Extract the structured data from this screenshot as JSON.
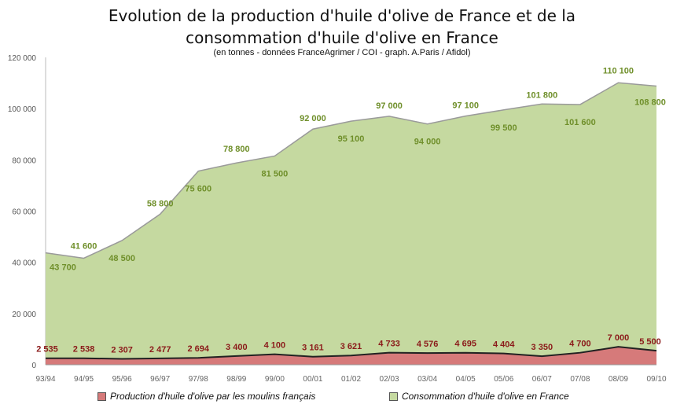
{
  "chart_data": {
    "type": "area",
    "title_line1": "Evolution de la production d'huile d'olive de France et de la",
    "title_line2": "consommation d'huile d'olive en France",
    "subtitle": "(en tonnes - données FranceAgrimer / COI - graph. A.Paris / Afidol)",
    "categories": [
      "93/94",
      "94/95",
      "95/96",
      "96/97",
      "97/98",
      "98/99",
      "99/00",
      "00/01",
      "01/02",
      "02/03",
      "03/04",
      "04/05",
      "05/06",
      "06/07",
      "07/08",
      "08/09",
      "09/10"
    ],
    "ylim": [
      0,
      120000
    ],
    "yticks": [
      0,
      20000,
      40000,
      60000,
      80000,
      100000,
      120000
    ],
    "ytick_labels": [
      "0",
      "20 000",
      "40 000",
      "60 000",
      "80 000",
      "100 000",
      "120 000"
    ],
    "series": [
      {
        "name": "Consommation d'huile d'olive en France",
        "color": "#c5d9a0",
        "line_color": "#9a9a9a",
        "label_color": "#6f8f2a",
        "values": [
          43700,
          41600,
          48500,
          58800,
          75600,
          78800,
          81500,
          92000,
          95100,
          97000,
          94000,
          97100,
          99500,
          101800,
          101600,
          110100,
          108800
        ],
        "labels": [
          "43 700",
          "41 600",
          "48 500",
          "58 800",
          "75 600",
          "78 800",
          "81 500",
          "92 000",
          "95 100",
          "97 000",
          "94 000",
          "97 100",
          "99 500",
          "101 800",
          "101 600",
          "110 100",
          "108 800"
        ]
      },
      {
        "name": "Production d'huile d'olive par les moulins français",
        "color": "#d67a7a",
        "line_color": "#222222",
        "label_color": "#8b1a1a",
        "values": [
          2535,
          2538,
          2307,
          2477,
          2694,
          3400,
          4100,
          3161,
          3621,
          4733,
          4576,
          4695,
          4404,
          3350,
          4700,
          7000,
          5500
        ],
        "labels": [
          "2 535",
          "2 538",
          "2 307",
          "2 477",
          "2 694",
          "3 400",
          "4 100",
          "3 161",
          "3 621",
          "4 733",
          "4 576",
          "4 695",
          "4 404",
          "3 350",
          "4 700",
          "7 000",
          "5 500"
        ]
      }
    ],
    "grid": false,
    "legend_position": "bottom"
  }
}
